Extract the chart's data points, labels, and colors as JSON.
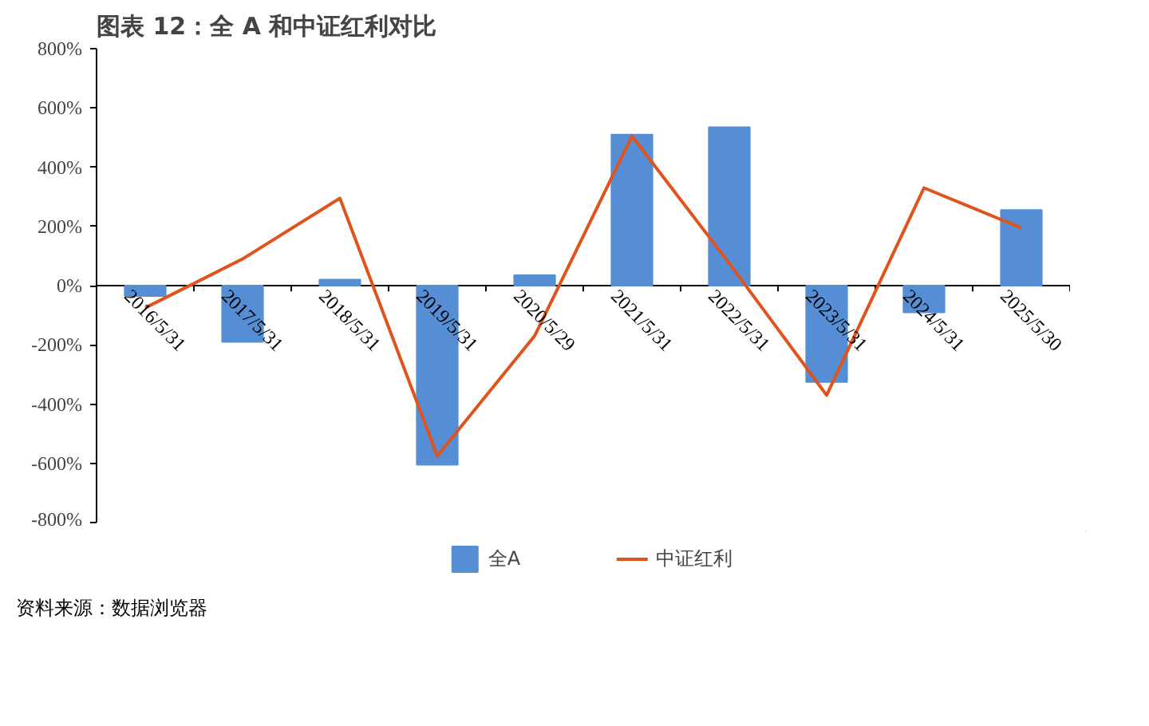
{
  "chart_data": {
    "type": "bar",
    "title": "图表 12：全 A 和中证红利对比",
    "categories": [
      "2016/5/31",
      "2017/5/31",
      "2018/5/31",
      "2019/5/31",
      "2020/5/29",
      "2021/5/31",
      "2022/5/31",
      "2023/5/31",
      "2024/5/31",
      "2025/5/30"
    ],
    "series": [
      {
        "name": "全A",
        "color": "#558ed5",
        "values": [
          -35,
          -190,
          20,
          -605,
          35,
          510,
          535,
          -325,
          -90,
          255
        ]
      },
      {
        "name": "中证红利",
        "type": "line",
        "color": "#e0531c",
        "values": [
          -75,
          90,
          295,
          -575,
          -170,
          505,
          75,
          -370,
          330,
          195
        ]
      }
    ],
    "ylim": [
      -800,
      800
    ],
    "yticks": [
      {
        "value": -800,
        "label": "-800%"
      },
      {
        "value": -600,
        "label": "-600%"
      },
      {
        "value": -400,
        "label": "-400%"
      },
      {
        "value": -200,
        "label": "-200%"
      },
      {
        "value": 0,
        "label": "0%"
      },
      {
        "value": 200,
        "label": "200%"
      },
      {
        "value": 400,
        "label": "400%"
      },
      {
        "value": 600,
        "label": "600%"
      },
      {
        "value": 800,
        "label": "800%"
      }
    ],
    "grid": false,
    "legend": "bottom",
    "line_style": "solid",
    "marker": "none",
    "annotations": [
      "资料来源：数据浏览器"
    ]
  }
}
